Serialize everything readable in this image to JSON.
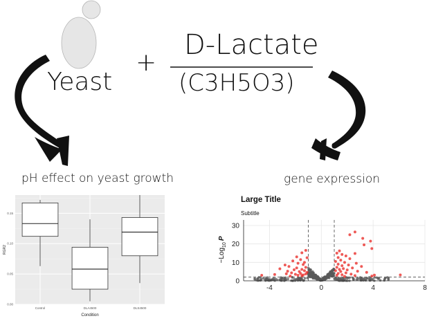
{
  "diagram": {
    "organism_label": "Yeast",
    "plus_sign": "+",
    "compound_name": "D-Lactate",
    "compound_formula": "(C3H5O3)",
    "left_caption": "pH effect on yeast growth",
    "right_caption": "gene expression",
    "colors": {
      "ink": "#111111",
      "cell_fill": "#e6e6e6",
      "panel_bg": "#ebebeb",
      "point_sig": "#e8231f",
      "point_ns": "#5a5a5a"
    }
  },
  "chart_data": [
    {
      "type": "boxplot",
      "xlabel": "Condition",
      "ylabel": "RGR2",
      "categories": [
        "Control",
        "DLA4500",
        "DLS4500"
      ],
      "ylim": [
        0.0,
        0.18
      ],
      "yticks": [
        "0.00",
        "0.05",
        "0.10",
        "0.15"
      ],
      "ytick_values": [
        0.0,
        0.05,
        0.1,
        0.15
      ],
      "boxes": [
        {
          "category": "Control",
          "min": 0.063,
          "q1": 0.112,
          "median": 0.133,
          "q3": 0.167,
          "max": 0.172
        },
        {
          "category": "DLA4500",
          "min": 0.005,
          "q1": 0.025,
          "median": 0.058,
          "q3": 0.094,
          "max": 0.14
        },
        {
          "category": "DLS4500",
          "min": 0.035,
          "q1": 0.08,
          "median": 0.119,
          "q3": 0.143,
          "max": 0.18
        }
      ]
    },
    {
      "type": "scatter",
      "title": "Large Title",
      "subtitle": "Subtitle",
      "xlabel": "",
      "ylabel_main": "−Log",
      "ylabel_sub": "10",
      "ylabel_var": "P",
      "xlim": [
        -6,
        8
      ],
      "ylim": [
        0,
        33
      ],
      "xticks": [
        "-4",
        "0",
        "4",
        "8"
      ],
      "xtick_values": [
        -4,
        0,
        4,
        8
      ],
      "yticks": [
        "0",
        "10",
        "20",
        "30"
      ],
      "ytick_values": [
        0,
        10,
        20,
        30
      ],
      "fc_cutoff": [
        -1,
        1
      ],
      "p_cutoff": 2,
      "significant_points": [
        [
          -1.2,
          16.5
        ],
        [
          -1.5,
          15.2
        ],
        [
          -1.9,
          13
        ],
        [
          -1.1,
          12.5
        ],
        [
          -1.6,
          11.5
        ],
        [
          -2.2,
          10.8
        ],
        [
          -1.3,
          10
        ],
        [
          -1.8,
          9.5
        ],
        [
          -2.8,
          8.6
        ],
        [
          -1.4,
          8.8
        ],
        [
          -2.5,
          7.8
        ],
        [
          -1.2,
          7.3
        ],
        [
          -1.9,
          7
        ],
        [
          -3.2,
          6.5
        ],
        [
          -1.5,
          6.2
        ],
        [
          -2.1,
          6
        ],
        [
          -1.3,
          5.5
        ],
        [
          -2.6,
          5.2
        ],
        [
          -1.7,
          5
        ],
        [
          -1.1,
          4.6
        ],
        [
          -2.3,
          4.3
        ],
        [
          -1.6,
          4
        ],
        [
          -1.2,
          3.7
        ],
        [
          -2,
          3.5
        ],
        [
          -1.4,
          3.2
        ],
        [
          -1.8,
          3
        ],
        [
          -2.7,
          3.8
        ],
        [
          -3.6,
          3.4
        ],
        [
          -4.6,
          3
        ],
        [
          -1.5,
          2.7
        ],
        [
          -2.4,
          2.6
        ],
        [
          2.6,
          26.5
        ],
        [
          2.2,
          25
        ],
        [
          3.2,
          23
        ],
        [
          3.8,
          21.5
        ],
        [
          3.3,
          19.5
        ],
        [
          3.9,
          17.5
        ],
        [
          1.4,
          16.2
        ],
        [
          1.2,
          15
        ],
        [
          2.6,
          14.8
        ],
        [
          1.6,
          14.3
        ],
        [
          1.9,
          13.5
        ],
        [
          1.3,
          12.6
        ],
        [
          2.2,
          12
        ],
        [
          1.5,
          11.2
        ],
        [
          1.1,
          10.5
        ],
        [
          1.8,
          10
        ],
        [
          2.7,
          9.5
        ],
        [
          1.3,
          9
        ],
        [
          2.1,
          8.6
        ],
        [
          1.6,
          8.2
        ],
        [
          3.1,
          7.8
        ],
        [
          1.2,
          7.3
        ],
        [
          2.4,
          7
        ],
        [
          1.7,
          6.6
        ],
        [
          1.4,
          6.2
        ],
        [
          2,
          5.9
        ],
        [
          1.1,
          5.5
        ],
        [
          2.8,
          5.2
        ],
        [
          1.5,
          5
        ],
        [
          3.5,
          4.6
        ],
        [
          1.9,
          4.3
        ],
        [
          1.3,
          4
        ],
        [
          2.3,
          3.6
        ],
        [
          1.6,
          3.3
        ],
        [
          1.2,
          3
        ],
        [
          2.6,
          2.8
        ],
        [
          4.1,
          3.1
        ],
        [
          6.1,
          3.2
        ],
        [
          3.9,
          2.6
        ],
        [
          1.8,
          2.4
        ]
      ]
    }
  ]
}
